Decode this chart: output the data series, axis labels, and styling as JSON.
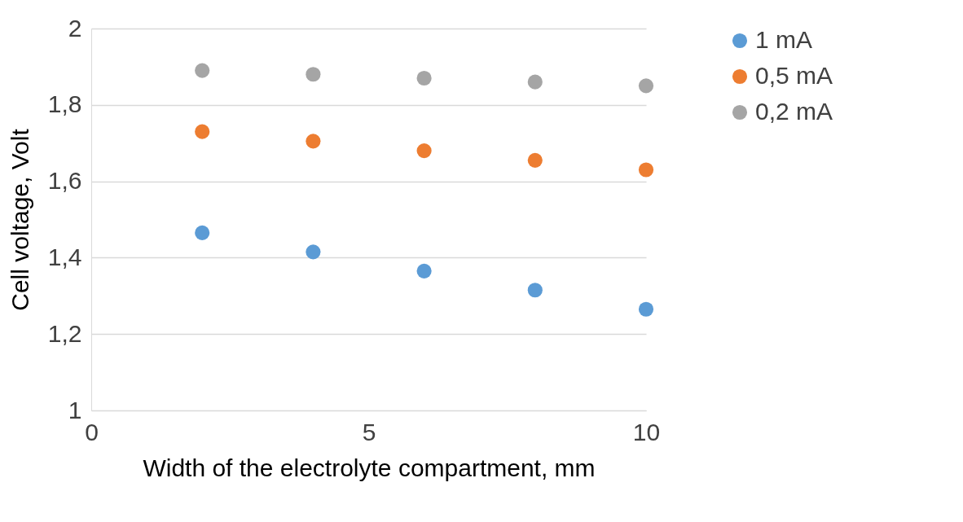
{
  "chart_data": {
    "type": "scatter",
    "xlabel": "Width of the electrolyte compartment, mm",
    "ylabel": "Cell voltage,  Volt",
    "x": [
      2,
      4,
      6,
      8,
      10
    ],
    "series": [
      {
        "name": "1 mA",
        "color": "#5b9bd5",
        "values": [
          1.465,
          1.415,
          1.365,
          1.315,
          1.265
        ]
      },
      {
        "name": "0,5 mA",
        "color": "#ed7d31",
        "values": [
          1.73,
          1.705,
          1.68,
          1.655,
          1.63
        ]
      },
      {
        "name": "0,2 mA",
        "color": "#a5a5a5",
        "values": [
          1.89,
          1.88,
          1.87,
          1.86,
          1.85
        ]
      }
    ],
    "xlim": [
      0,
      10
    ],
    "xticks": [
      0,
      5,
      10
    ],
    "ylim": [
      1,
      2
    ],
    "yticks": [
      1,
      {
        "value": 1.2,
        "label": "1,2"
      },
      {
        "value": 1.4,
        "label": "1,4"
      },
      {
        "value": 1.6,
        "label": "1,6"
      },
      {
        "value": 1.8,
        "label": "1,8"
      },
      2
    ],
    "grid": "y",
    "legend": "right",
    "marker": "circle"
  }
}
